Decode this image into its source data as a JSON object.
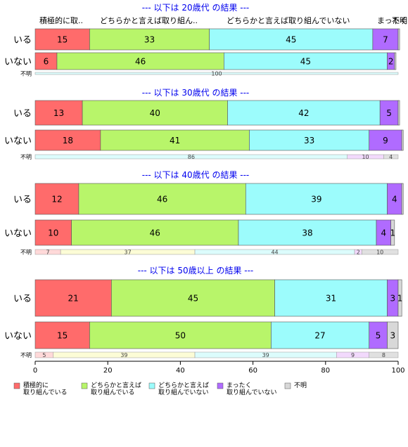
{
  "chart_data": {
    "type": "bar",
    "stacked": true,
    "orientation": "horizontal",
    "xlim": [
      0,
      100
    ],
    "x_ticks": [
      "0",
      "20",
      "40",
      "60",
      "80",
      "100"
    ],
    "column_headers": [
      "積極的に取..",
      "どちらかと言えば取り組ん..",
      "どちらかと言えば取り組んでいない",
      "まったく取..",
      "不明"
    ],
    "categories": [
      "積極的に取り組んでいる",
      "どちらかと言えば取り組んでいる",
      "どちらかと言えば取り組んでいない",
      "まったく取り組んでいない",
      "不明"
    ],
    "legend": [
      {
        "line1": "積極的に",
        "line2": "取り組んでいる",
        "color": "#ff6b6b"
      },
      {
        "line1": "どちらかと言えば",
        "line2": "取り組んでいる",
        "color": "#b8f56a"
      },
      {
        "line1": "どちらかと言えば",
        "line2": "取り組んでいない",
        "color": "#9cfcfc"
      },
      {
        "line1": "まったく",
        "line2": "取り組んでいない",
        "color": "#b06bff"
      },
      {
        "line1": "不明",
        "line2": "",
        "color": "#d8d8d8"
      }
    ],
    "colors": [
      "#ff6b6b",
      "#b8f56a",
      "#9cfcfc",
      "#b06bff",
      "#d8d8d8"
    ],
    "light_colors": [
      "#ffd9d9",
      "#fcfcd6",
      "#dcfcfc",
      "#f2d9fc",
      "#e0e0e0"
    ],
    "groups": [
      {
        "title": "--- 以下は 20歳代 の結果 ---",
        "rows": [
          {
            "label": "いる",
            "values": [
              15,
              33,
              45,
              7,
              0.4
            ],
            "labels": [
              "15",
              "33",
              "45",
              "7",
              ""
            ]
          },
          {
            "label": "いない",
            "values": [
              6,
              46,
              45,
              2,
              0.4
            ],
            "labels": [
              "6",
              "46",
              "45",
              "2",
              ""
            ]
          }
        ],
        "unknown_row": {
          "label": "不明",
          "values": [
            0,
            0,
            100,
            0,
            0
          ],
          "labels": [
            "",
            "",
            "100",
            "",
            ""
          ]
        }
      },
      {
        "title": "--- 以下は 30歳代 の結果 ---",
        "rows": [
          {
            "label": "いる",
            "values": [
              13,
              40,
              42,
              5,
              0.4
            ],
            "labels": [
              "13",
              "40",
              "42",
              "5",
              ""
            ]
          },
          {
            "label": "いない",
            "values": [
              18,
              41,
              33,
              9,
              0.4
            ],
            "labels": [
              "18",
              "41",
              "33",
              "9",
              ""
            ]
          }
        ],
        "unknown_row": {
          "label": "不明",
          "values": [
            0,
            0,
            86,
            10,
            4
          ],
          "labels": [
            "",
            "",
            "86",
            "10",
            "4"
          ]
        }
      },
      {
        "title": "--- 以下は 40歳代 の結果 ---",
        "rows": [
          {
            "label": "いる",
            "values": [
              12,
              46,
              39,
              4,
              0.4
            ],
            "labels": [
              "12",
              "46",
              "39",
              "4",
              ""
            ]
          },
          {
            "label": "いない",
            "values": [
              10,
              46,
              38,
              4,
              1
            ],
            "labels": [
              "10",
              "46",
              "38",
              "4",
              "1"
            ]
          }
        ],
        "unknown_row": {
          "label": "不明",
          "values": [
            7,
            37,
            44,
            2,
            10
          ],
          "labels": [
            "7",
            "37",
            "44",
            "2",
            "10"
          ]
        }
      },
      {
        "title": "--- 以下は 50歳以上 の結果 ---",
        "rows": [
          {
            "label": "いる",
            "values": [
              21,
              45,
              31,
              3,
              1
            ],
            "labels": [
              "21",
              "45",
              "31",
              "3",
              "1"
            ]
          },
          {
            "label": "いない",
            "values": [
              15,
              50,
              27,
              5,
              3
            ],
            "labels": [
              "15",
              "50",
              "27",
              "5",
              "3"
            ]
          }
        ],
        "unknown_row": {
          "label": "不明",
          "values": [
            5,
            39,
            39,
            9,
            8
          ],
          "labels": [
            "5",
            "39",
            "39",
            "9",
            "8"
          ]
        }
      }
    ]
  }
}
